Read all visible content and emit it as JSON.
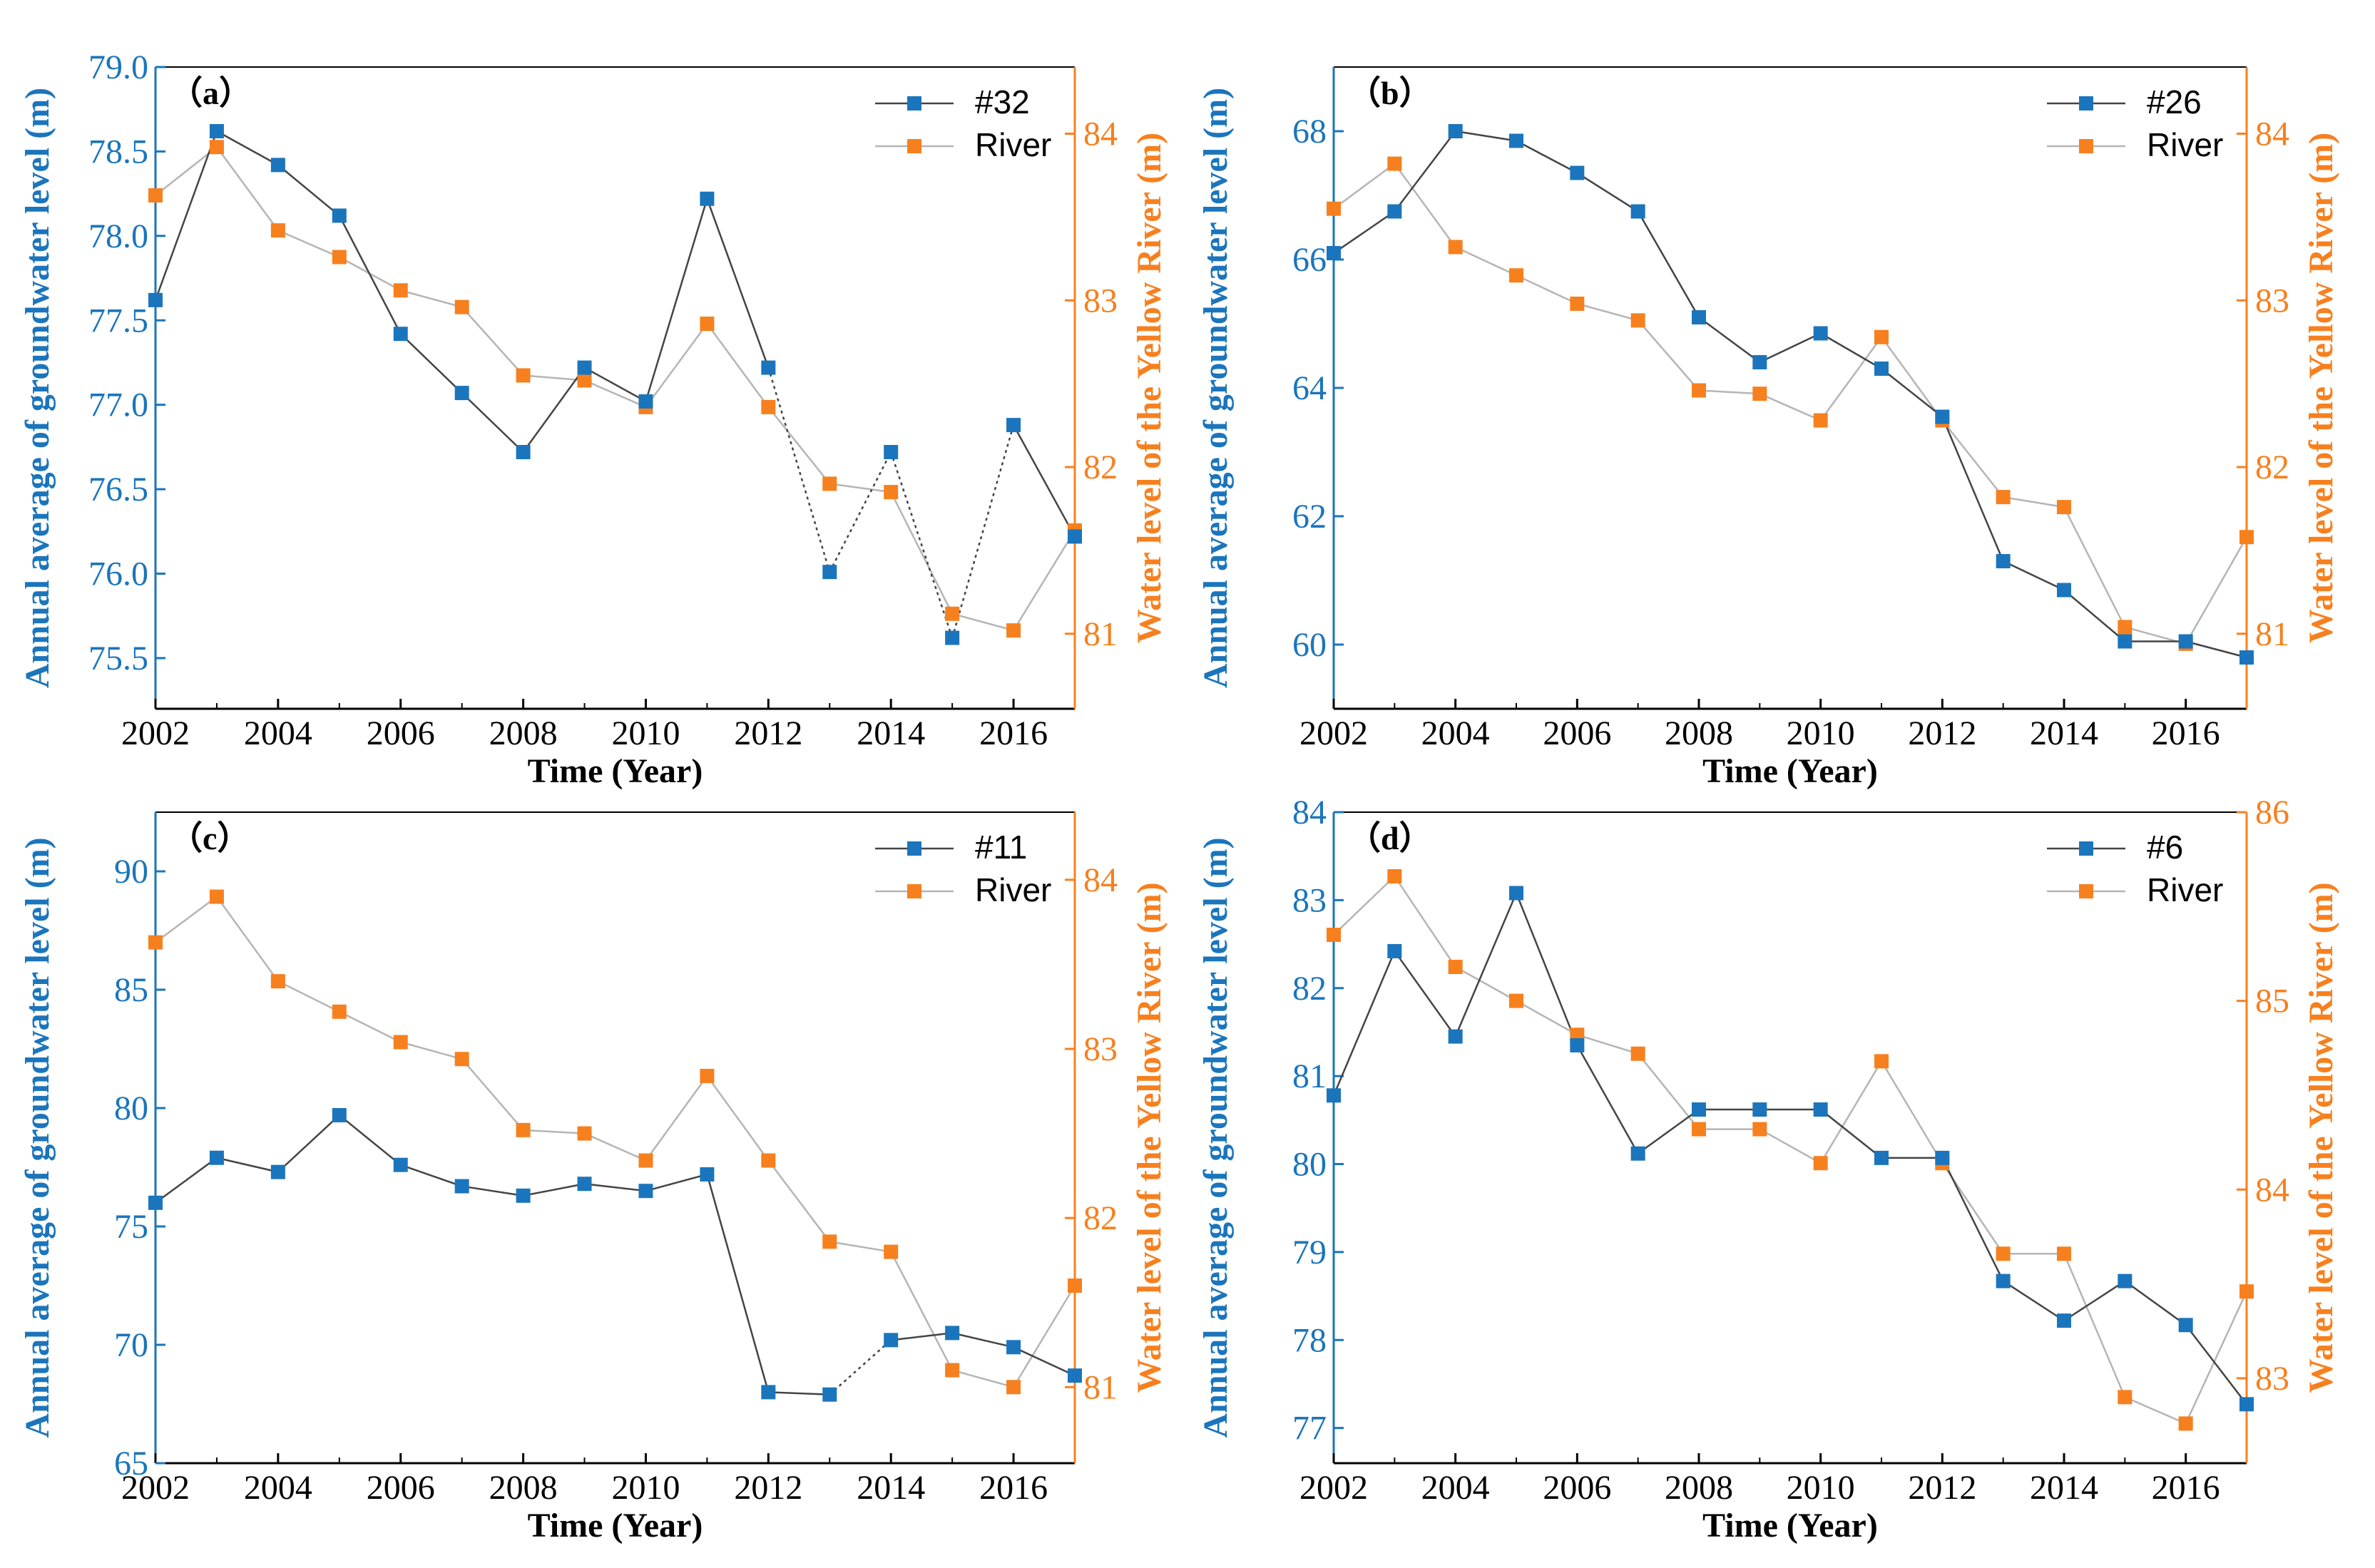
{
  "colors": {
    "well": "#1b75bc",
    "river": "#f7801e",
    "line": "#444444"
  },
  "chart_data": [
    {
      "type": "line",
      "panel_label": "（a）",
      "x": [
        2002,
        2003,
        2004,
        2005,
        2006,
        2007,
        2008,
        2009,
        2010,
        2011,
        2012,
        2013,
        2014,
        2015,
        2016,
        2017
      ],
      "xlim": [
        2002,
        2017
      ],
      "x_ticks": [
        2002,
        2004,
        2006,
        2008,
        2010,
        2012,
        2014,
        2016
      ],
      "xlabel": "Time (Year)",
      "ylabel": "Annual average of groundwater level (m)",
      "ylabel2": "Water level of the Yellow River (m)",
      "ylim": [
        75.2,
        79.0
      ],
      "y_ticks": [
        75.5,
        76.0,
        76.5,
        77.0,
        77.5,
        78.0,
        78.5,
        79.0
      ],
      "y_tick_labels": [
        "75.5",
        "76.0",
        "76.5",
        "77.0",
        "77.5",
        "78.0",
        "78.5",
        "79.0"
      ],
      "y2lim": [
        80.55,
        84.4
      ],
      "y2_ticks": [
        81,
        82,
        83,
        84
      ],
      "y2_tick_labels": [
        "81",
        "82",
        "83",
        "84"
      ],
      "dotted_from": 10,
      "dotted_to": 14,
      "series": [
        {
          "name": "#32",
          "axis": "left",
          "values": [
            77.62,
            78.62,
            78.42,
            78.12,
            77.42,
            77.07,
            76.72,
            77.22,
            77.02,
            78.22,
            77.22,
            76.01,
            76.72,
            75.62,
            76.88,
            76.22
          ]
        },
        {
          "name": "River",
          "axis": "right",
          "values": [
            83.63,
            83.92,
            83.42,
            83.26,
            83.06,
            82.96,
            82.55,
            82.52,
            82.36,
            82.86,
            82.36,
            81.9,
            81.85,
            81.12,
            81.02,
            81.62
          ]
        }
      ]
    },
    {
      "type": "line",
      "panel_label": "（b）",
      "x": [
        2002,
        2003,
        2004,
        2005,
        2006,
        2007,
        2008,
        2009,
        2010,
        2011,
        2012,
        2013,
        2014,
        2015,
        2016,
        2017
      ],
      "xlim": [
        2002,
        2017
      ],
      "x_ticks": [
        2002,
        2004,
        2006,
        2008,
        2010,
        2012,
        2014,
        2016
      ],
      "xlabel": "Time (Year)",
      "ylabel": "Annual average of groundwater level (m)",
      "ylabel2": "Water level of the Yellow River (m)",
      "ylim": [
        59.0,
        69.0
      ],
      "y_ticks": [
        60,
        62,
        64,
        66,
        68
      ],
      "y_tick_labels": [
        "60",
        "62",
        "64",
        "66",
        "68"
      ],
      "y2lim": [
        80.55,
        84.4
      ],
      "y2_ticks": [
        81,
        82,
        83,
        84
      ],
      "y2_tick_labels": [
        "81",
        "82",
        "83",
        "84"
      ],
      "series": [
        {
          "name": "#26",
          "axis": "left",
          "values": [
            66.1,
            66.75,
            68.0,
            67.85,
            67.35,
            66.75,
            65.1,
            64.4,
            64.85,
            64.3,
            63.55,
            61.3,
            60.85,
            60.05,
            60.05,
            59.8
          ]
        },
        {
          "name": "River",
          "axis": "right",
          "values": [
            83.55,
            83.82,
            83.32,
            83.15,
            82.98,
            82.88,
            82.46,
            82.44,
            82.28,
            82.78,
            82.28,
            81.82,
            81.76,
            81.04,
            80.94,
            81.58
          ]
        }
      ]
    },
    {
      "type": "line",
      "panel_label": "（c）",
      "x": [
        2002,
        2003,
        2004,
        2005,
        2006,
        2007,
        2008,
        2009,
        2010,
        2011,
        2012,
        2013,
        2014,
        2015,
        2016,
        2017
      ],
      "xlim": [
        2002,
        2017
      ],
      "x_ticks": [
        2002,
        2004,
        2006,
        2008,
        2010,
        2012,
        2014,
        2016
      ],
      "xlabel": "Time (Year)",
      "ylabel": "Annual average of groundwater level (m)",
      "ylabel2": "Water level of the Yellow River (m)",
      "ylim": [
        65,
        92.5
      ],
      "y_ticks": [
        65,
        70,
        75,
        80,
        85,
        90
      ],
      "y_tick_labels": [
        "65",
        "70",
        "75",
        "80",
        "85",
        "90"
      ],
      "y2lim": [
        80.55,
        84.4
      ],
      "y2_ticks": [
        81,
        82,
        83,
        84
      ],
      "y2_tick_labels": [
        "81",
        "82",
        "83",
        "84"
      ],
      "dotted_from": 11,
      "dotted_to": 12,
      "series": [
        {
          "name": "#11",
          "axis": "left",
          "values": [
            76.0,
            77.9,
            77.3,
            79.7,
            77.6,
            76.7,
            76.3,
            76.8,
            76.5,
            77.2,
            68.0,
            67.9,
            70.2,
            70.5,
            69.9,
            68.7
          ]
        },
        {
          "name": "River",
          "axis": "right",
          "values": [
            83.63,
            83.9,
            83.4,
            83.22,
            83.04,
            82.94,
            82.52,
            82.5,
            82.34,
            82.84,
            82.34,
            81.86,
            81.8,
            81.1,
            81.0,
            81.6
          ]
        }
      ]
    },
    {
      "type": "line",
      "panel_label": "（d）",
      "x": [
        2002,
        2003,
        2004,
        2005,
        2006,
        2007,
        2008,
        2009,
        2010,
        2011,
        2012,
        2013,
        2014,
        2015,
        2016,
        2017
      ],
      "xlim": [
        2002,
        2017
      ],
      "x_ticks": [
        2002,
        2004,
        2006,
        2008,
        2010,
        2012,
        2014,
        2016
      ],
      "xlabel": "Time (Year)",
      "ylabel": "Annual average of groundwater level (m)",
      "ylabel2": "Water level of the Yellow River (m)",
      "ylim": [
        76.6,
        84.0
      ],
      "y_ticks": [
        77,
        78,
        79,
        80,
        81,
        82,
        83,
        84
      ],
      "y_tick_labels": [
        "77",
        "78",
        "79",
        "80",
        "81",
        "82",
        "83",
        "84"
      ],
      "y2lim": [
        82.55,
        86.0
      ],
      "y2_ticks": [
        83,
        84,
        85,
        86
      ],
      "y2_tick_labels": [
        "83",
        "84",
        "85",
        "86"
      ],
      "series": [
        {
          "name": "#6",
          "axis": "left",
          "values": [
            80.78,
            82.42,
            81.45,
            83.08,
            81.35,
            80.12,
            80.62,
            80.62,
            80.62,
            80.07,
            80.07,
            78.67,
            78.22,
            78.67,
            78.17,
            77.27
          ]
        },
        {
          "name": "River",
          "axis": "right",
          "values": [
            85.35,
            85.66,
            85.18,
            85.0,
            84.82,
            84.72,
            84.32,
            84.32,
            84.14,
            84.68,
            84.14,
            83.66,
            83.66,
            82.9,
            82.76,
            83.46
          ]
        }
      ]
    }
  ]
}
